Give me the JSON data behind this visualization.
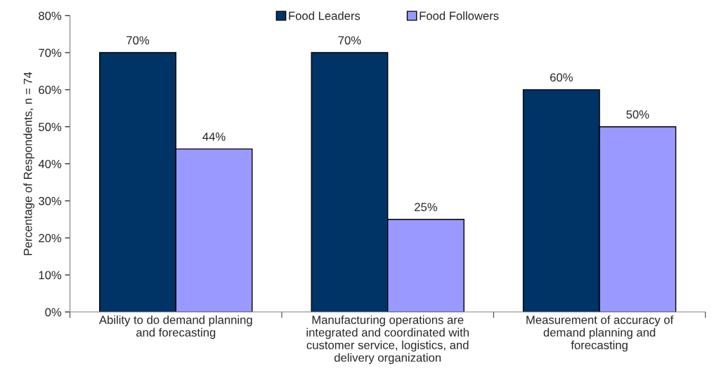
{
  "chart_data": {
    "type": "bar",
    "categories": [
      "Ability to do demand planning\nand forecasting",
      "Manufacturing operations are\nintegrated and coordinated with\ncustomer service, logistics, and\ndelivery organization",
      "Measurement of accuracy of\ndemand planning and\nforecasting"
    ],
    "series": [
      {
        "name": "Food Leaders",
        "color": "#003366",
        "values": [
          70,
          70,
          60
        ],
        "value_labels": [
          "70%",
          "70%",
          "60%"
        ]
      },
      {
        "name": "Food Followers",
        "color": "#9999ff",
        "values": [
          44,
          25,
          50
        ],
        "value_labels": [
          "44%",
          "25%",
          "50%"
        ]
      }
    ],
    "ylabel": "Percentage of Respondents, n = 74",
    "ylim": [
      0,
      80
    ],
    "yticks": [
      {
        "value": 0,
        "label": "0%"
      },
      {
        "value": 10,
        "label": "10%"
      },
      {
        "value": 20,
        "label": "20%"
      },
      {
        "value": 30,
        "label": "30%"
      },
      {
        "value": 40,
        "label": "40%"
      },
      {
        "value": 50,
        "label": "50%"
      },
      {
        "value": 60,
        "label": "60%"
      },
      {
        "value": 70,
        "label": "70%"
      },
      {
        "value": 80,
        "label": "80%"
      }
    ],
    "grid": false,
    "legend": "top"
  }
}
